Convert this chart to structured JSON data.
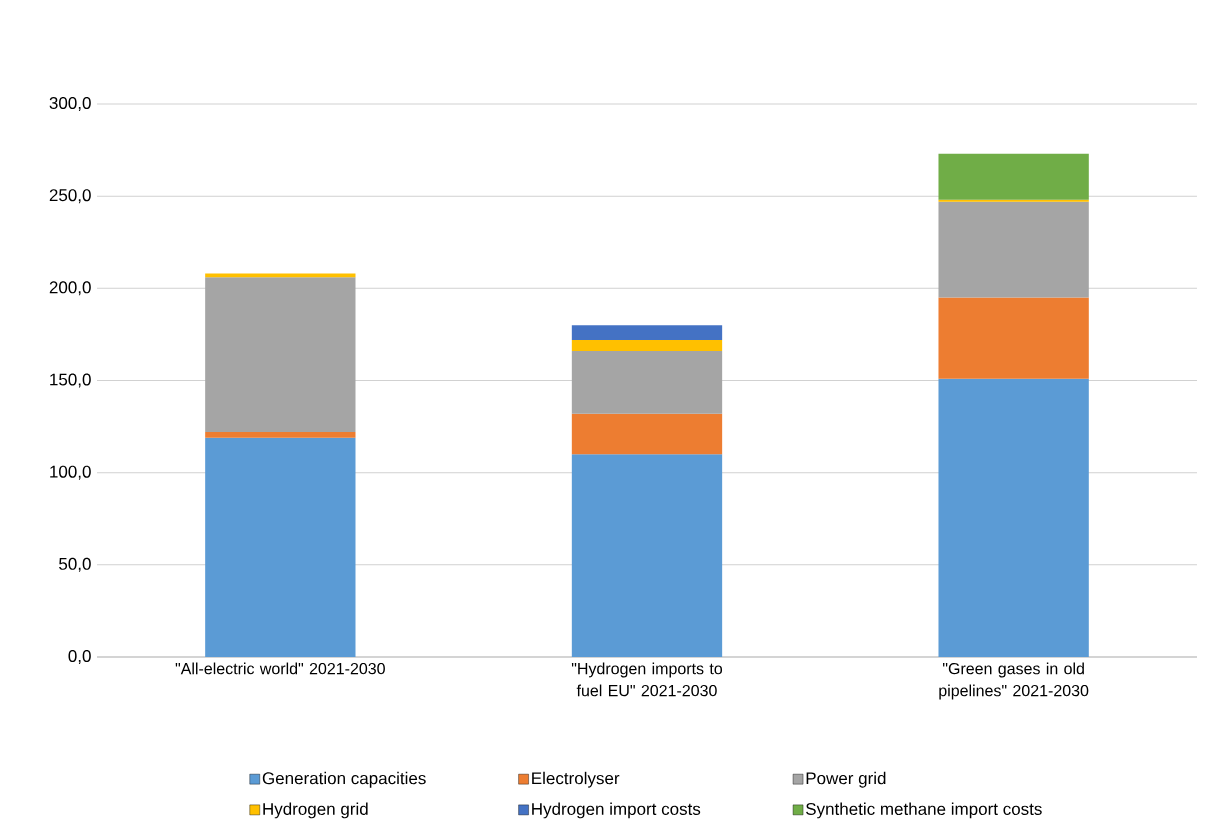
{
  "chart_data": {
    "type": "bar",
    "stacked": true,
    "categories": [
      "\"All-electric world\" 2021-2030",
      "\"Hydrogen imports to fuel EU\" 2021-2030",
      "\"Green gases in old pipelines\" 2021-2030"
    ],
    "series": [
      {
        "name": "Generation capacities",
        "color": "#5b9bd5",
        "values": [
          119,
          110,
          151
        ]
      },
      {
        "name": "Electrolyser",
        "color": "#ed7d31",
        "values": [
          3,
          22,
          44
        ]
      },
      {
        "name": "Power grid",
        "color": "#a5a5a5",
        "values": [
          84,
          34,
          52
        ]
      },
      {
        "name": "Hydrogen grid",
        "color": "#ffc000",
        "values": [
          2,
          6,
          1
        ]
      },
      {
        "name": "Hydrogen import costs",
        "color": "#4472c4",
        "values": [
          null,
          8,
          null
        ]
      },
      {
        "name": "Synthetic methane import costs",
        "color": "#70ad47",
        "values": [
          null,
          null,
          25
        ]
      }
    ],
    "ylim": [
      0,
      300
    ],
    "yticks": [
      {
        "value": 0,
        "label": "0,0"
      },
      {
        "value": 50,
        "label": "50,0"
      },
      {
        "value": 100,
        "label": "100,0"
      },
      {
        "value": 150,
        "label": "150,0"
      },
      {
        "value": 200,
        "label": "200,0"
      },
      {
        "value": 250,
        "label": "250,0"
      },
      {
        "value": 300,
        "label": "300,0"
      }
    ],
    "grid": "y",
    "legend": "bottom"
  }
}
